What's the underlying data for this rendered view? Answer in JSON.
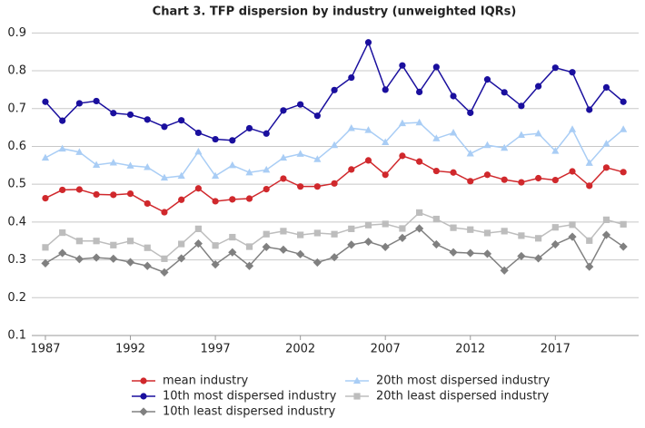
{
  "chart_data": {
    "type": "line",
    "title": "Chart 3. TFP dispersion by industry (unweighted IQRs)",
    "x": [
      1987,
      1988,
      1989,
      1990,
      1991,
      1992,
      1993,
      1994,
      1995,
      1996,
      1997,
      1998,
      1999,
      2000,
      2001,
      2002,
      2003,
      2004,
      2005,
      2006,
      2007,
      2008,
      2009,
      2010,
      2011,
      2012,
      2013,
      2014,
      2015,
      2016,
      2017,
      2018,
      2019,
      2020,
      2021
    ],
    "xlim": [
      1986.2,
      2021.9
    ],
    "xticks": [
      1987,
      1992,
      1997,
      2002,
      2007,
      2012,
      2017
    ],
    "ylim": [
      0.1,
      0.92
    ],
    "yticks": [
      0.1,
      0.2,
      0.3,
      0.4,
      0.5,
      0.6,
      0.7,
      0.8,
      0.9
    ],
    "grid": true,
    "legend": "bottom",
    "series": [
      {
        "name": "mean industry",
        "color": "#d0282c",
        "marker": "circle",
        "values": [
          0.463,
          0.485,
          0.486,
          0.473,
          0.472,
          0.475,
          0.449,
          0.426,
          0.459,
          0.489,
          0.455,
          0.46,
          0.462,
          0.487,
          0.515,
          0.494,
          0.494,
          0.502,
          0.539,
          0.563,
          0.525,
          0.575,
          0.56,
          0.535,
          0.531,
          0.508,
          0.525,
          0.512,
          0.505,
          0.516,
          0.511,
          0.534,
          0.496,
          0.544,
          0.532
        ]
      },
      {
        "name": "10th most dispersed industry",
        "color": "#1a0f9e",
        "marker": "circle",
        "values": [
          0.718,
          0.668,
          0.714,
          0.72,
          0.688,
          0.684,
          0.671,
          0.652,
          0.669,
          0.636,
          0.619,
          0.616,
          0.648,
          0.634,
          0.695,
          0.711,
          0.681,
          0.749,
          0.782,
          0.875,
          0.75,
          0.814,
          0.744,
          0.81,
          0.733,
          0.689,
          0.777,
          0.743,
          0.707,
          0.759,
          0.808,
          0.796,
          0.697,
          0.756,
          0.718
        ]
      },
      {
        "name": "10th least dispersed industry",
        "color": "#808080",
        "marker": "diamond",
        "values": [
          0.291,
          0.318,
          0.302,
          0.306,
          0.303,
          0.294,
          0.284,
          0.267,
          0.304,
          0.343,
          0.288,
          0.32,
          0.284,
          0.334,
          0.327,
          0.315,
          0.293,
          0.307,
          0.34,
          0.348,
          0.334,
          0.358,
          0.383,
          0.341,
          0.32,
          0.318,
          0.316,
          0.272,
          0.31,
          0.304,
          0.341,
          0.361,
          0.282,
          0.366,
          0.335
        ]
      },
      {
        "name": "20th most dispersed industry",
        "color": "#a9cdf5",
        "marker": "triangle",
        "values": [
          0.57,
          0.594,
          0.585,
          0.551,
          0.557,
          0.549,
          0.545,
          0.517,
          0.522,
          0.586,
          0.522,
          0.55,
          0.531,
          0.538,
          0.57,
          0.58,
          0.566,
          0.603,
          0.648,
          0.643,
          0.611,
          0.661,
          0.663,
          0.621,
          0.636,
          0.581,
          0.603,
          0.596,
          0.63,
          0.634,
          0.588,
          0.645,
          0.556,
          0.607,
          0.645
        ]
      },
      {
        "name": "20th least dispersed industry",
        "color": "#bdbdbd",
        "marker": "square",
        "values": [
          0.333,
          0.372,
          0.35,
          0.35,
          0.339,
          0.35,
          0.332,
          0.303,
          0.342,
          0.382,
          0.338,
          0.36,
          0.335,
          0.368,
          0.376,
          0.366,
          0.371,
          0.368,
          0.382,
          0.392,
          0.395,
          0.383,
          0.425,
          0.408,
          0.385,
          0.38,
          0.371,
          0.376,
          0.364,
          0.357,
          0.386,
          0.393,
          0.351,
          0.406,
          0.394
        ]
      }
    ]
  }
}
